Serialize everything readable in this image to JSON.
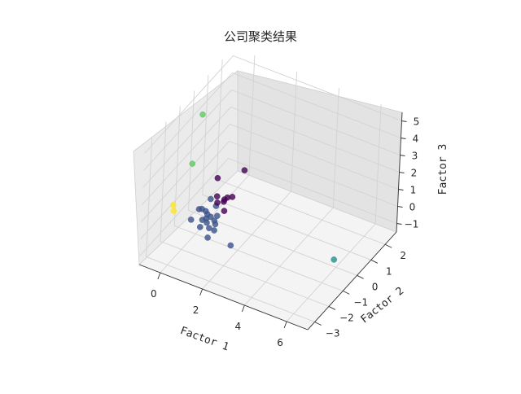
{
  "chart_data": {
    "type": "scatter",
    "title": "公司聚类结果",
    "xlabel": "Factor 1",
    "ylabel": "Factor 2",
    "zlabel": "Factor 3",
    "xlim": [
      -1.0,
      7.0
    ],
    "ylim": [
      -3.5,
      2.8
    ],
    "zlim": [
      -1.5,
      5.5
    ],
    "x_ticks": [
      0,
      2,
      4,
      6
    ],
    "y_ticks": [
      -3,
      -2,
      -1,
      0,
      1,
      2
    ],
    "z_ticks": [
      -1,
      0,
      1,
      2,
      3,
      4,
      5
    ],
    "grid": true,
    "colormap": "viridis",
    "cluster_colors": [
      "#440154",
      "#3b528b",
      "#21918c",
      "#5ec962",
      "#fde725"
    ],
    "points": [
      {
        "x": 0.8,
        "y": -0.8,
        "z": 0.9,
        "cluster": 0
      },
      {
        "x": 0.6,
        "y": -0.5,
        "z": 1.6,
        "cluster": 0
      },
      {
        "x": 1.2,
        "y": -0.3,
        "z": 0.6,
        "cluster": 0
      },
      {
        "x": 1.0,
        "y": -0.6,
        "z": 0.5,
        "cluster": 0
      },
      {
        "x": 0.9,
        "y": -0.4,
        "z": 0.4,
        "cluster": 0
      },
      {
        "x": 1.1,
        "y": -0.5,
        "z": 0.7,
        "cluster": 0
      },
      {
        "x": 0.7,
        "y": -0.6,
        "z": 0.3,
        "cluster": 0
      },
      {
        "x": 1.4,
        "y": 0.2,
        "z": 1.8,
        "cluster": 0
      },
      {
        "x": 1.1,
        "y": -0.7,
        "z": 0.1,
        "cluster": 0
      },
      {
        "x": 0.3,
        "y": -0.8,
        "z": -0.2,
        "cluster": 1
      },
      {
        "x": 0.5,
        "y": -1.0,
        "z": -0.6,
        "cluster": 1
      },
      {
        "x": 0.2,
        "y": -0.5,
        "z": -0.7,
        "cluster": 1
      },
      {
        "x": 0.6,
        "y": -0.6,
        "z": -0.8,
        "cluster": 1
      },
      {
        "x": 0.4,
        "y": -0.9,
        "z": -0.5,
        "cluster": 1
      },
      {
        "x": 0.1,
        "y": -0.7,
        "z": -0.9,
        "cluster": 1
      },
      {
        "x": 0.8,
        "y": -0.9,
        "z": -1.0,
        "cluster": 1
      },
      {
        "x": 0.0,
        "y": -0.6,
        "z": -0.4,
        "cluster": 1
      },
      {
        "x": 0.7,
        "y": -1.2,
        "z": -1.2,
        "cluster": 1
      },
      {
        "x": 0.3,
        "y": -0.4,
        "z": -0.9,
        "cluster": 1
      },
      {
        "x": -0.2,
        "y": -0.5,
        "z": -0.6,
        "cluster": 1
      },
      {
        "x": 0.2,
        "y": -0.3,
        "z": 0.0,
        "cluster": 1
      },
      {
        "x": 0.5,
        "y": -0.8,
        "z": -1.1,
        "cluster": 1
      },
      {
        "x": -0.3,
        "y": -0.9,
        "z": -0.9,
        "cluster": 1
      },
      {
        "x": 0.4,
        "y": -0.2,
        "z": -0.4,
        "cluster": 1
      },
      {
        "x": 0.6,
        "y": -0.4,
        "z": -0.7,
        "cluster": 1
      },
      {
        "x": 1.6,
        "y": -0.9,
        "z": -1.5,
        "cluster": 1
      },
      {
        "x": 0.2,
        "y": -1.0,
        "z": -1.0,
        "cluster": 1
      },
      {
        "x": 0.9,
        "y": -1.0,
        "z": -0.5,
        "cluster": 1
      },
      {
        "x": 6.2,
        "y": -0.5,
        "z": -0.5,
        "cluster": 2
      },
      {
        "x": -0.3,
        "y": -0.4,
        "z": 4.8,
        "cluster": 3
      },
      {
        "x": -0.8,
        "y": -0.2,
        "z": 1.5,
        "cluster": 3
      },
      {
        "x": -1.6,
        "y": -0.2,
        "z": -1.3,
        "cluster": 4
      },
      {
        "x": -1.5,
        "y": -0.3,
        "z": -1.5,
        "cluster": 4
      }
    ]
  }
}
